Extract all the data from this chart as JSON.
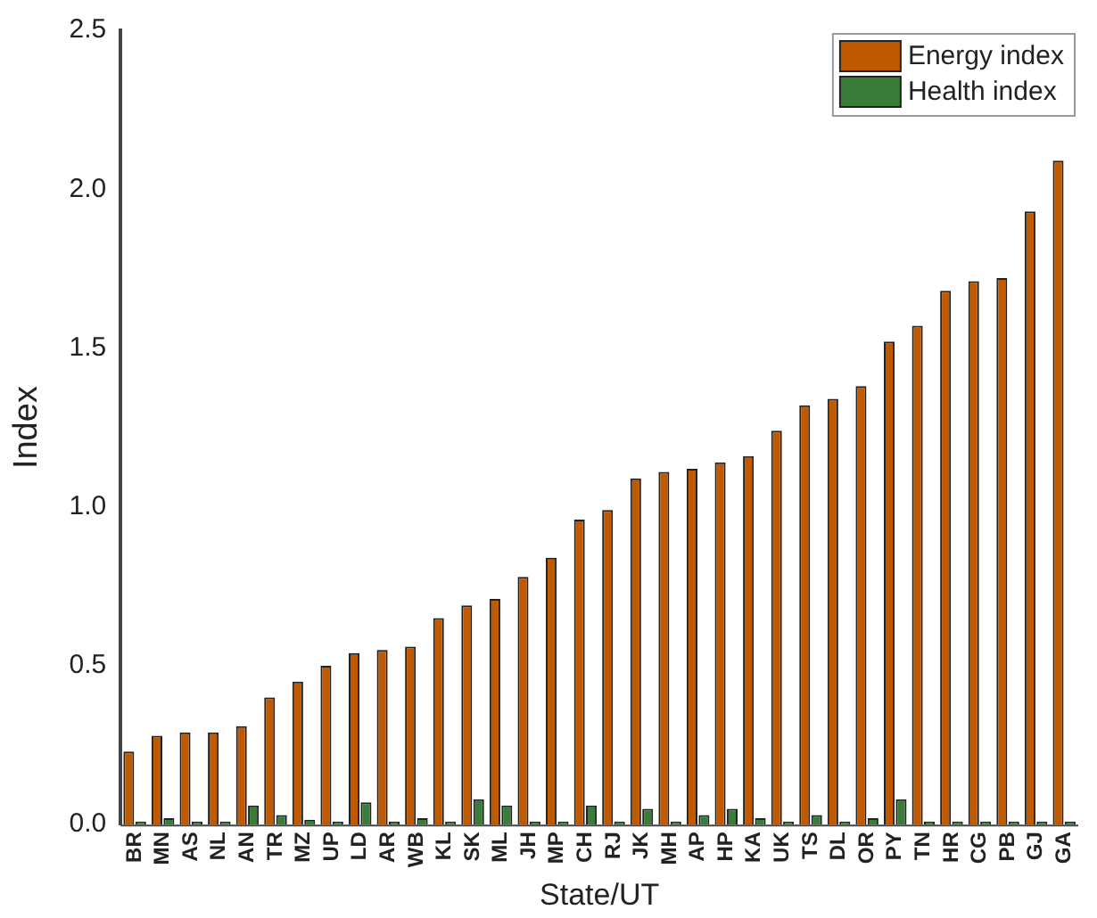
{
  "chart_data": {
    "type": "bar",
    "xlabel": "State/UT",
    "ylabel": "Index",
    "categories": [
      "BR",
      "MN",
      "AS",
      "NL",
      "AN",
      "TR",
      "MZ",
      "UP",
      "LD",
      "AR",
      "WB",
      "KL",
      "SK",
      "ML",
      "JH",
      "MP",
      "CH",
      "RJ",
      "JK",
      "MH",
      "AP",
      "HP",
      "KA",
      "UK",
      "TS",
      "DL",
      "OR",
      "PY",
      "TN",
      "HR",
      "CG",
      "PB",
      "GJ",
      "GA"
    ],
    "series": [
      {
        "name": "Energy index",
        "color": "#c05a00",
        "values": [
          0.23,
          0.28,
          0.29,
          0.29,
          0.31,
          0.4,
          0.45,
          0.5,
          0.54,
          0.55,
          0.56,
          0.65,
          0.69,
          0.71,
          0.78,
          0.84,
          0.96,
          0.99,
          1.09,
          1.11,
          1.12,
          1.14,
          1.16,
          1.24,
          1.32,
          1.34,
          1.38,
          1.52,
          1.57,
          1.68,
          1.71,
          1.72,
          1.93,
          2.09
        ]
      },
      {
        "name": "Health index",
        "color": "#3a7d3a",
        "values": [
          0.01,
          0.02,
          0.01,
          0.01,
          0.06,
          0.03,
          0.015,
          0.01,
          0.07,
          0.01,
          0.02,
          0.01,
          0.08,
          0.06,
          0.01,
          0.01,
          0.06,
          0.01,
          0.05,
          0.01,
          0.03,
          0.05,
          0.02,
          0.01,
          0.03,
          0.01,
          0.02,
          0.08,
          0.01,
          0.01,
          0.01,
          0.01,
          0.01,
          0.01
        ]
      }
    ],
    "ylim": [
      0,
      2.5
    ],
    "yticks": [
      {
        "value": 0,
        "label": "0.0"
      },
      0.5,
      {
        "value": 1,
        "label": "1.0"
      },
      1.5,
      {
        "value": 2,
        "label": "2.0"
      },
      2.5
    ],
    "grid": false,
    "legend": "top right"
  }
}
